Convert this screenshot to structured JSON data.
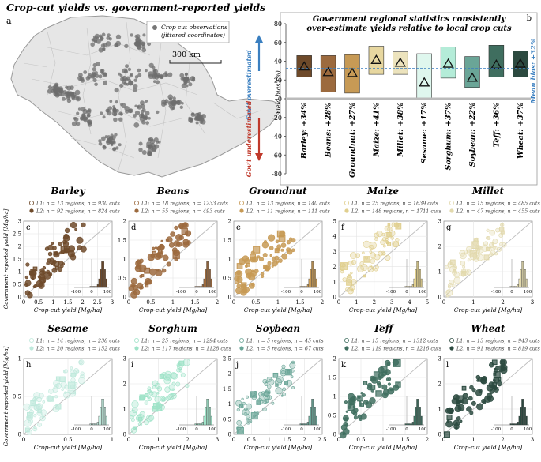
{
  "title": "Crop-cut yields vs. government-reported yields",
  "map": {
    "panel_label": "a",
    "legend_line1": "Crop cut observations",
    "legend_line2": "(jittered coordinates)",
    "scale_label": "300 km"
  },
  "chart_data": [
    {
      "type": "bar",
      "panel": "b",
      "title_line1": "Government regional statistics consistently",
      "title_line2": "over-estimate yields relative to local crop cuts",
      "ylabel": "Yield bias (%)",
      "ylim": [
        -80,
        80
      ],
      "yticks": [
        -80,
        -60,
        -40,
        -20,
        0,
        20,
        40,
        60,
        80
      ],
      "mean_bias_label": "Mean bias: +32%",
      "mean_bias": 32,
      "gov_over_label": "Gov't overestimated",
      "gov_under_label": "Gov't underestimated",
      "categories": [
        "Barley",
        "Beans",
        "Groundnut",
        "Maize",
        "Millet",
        "Sesame",
        "Sorghum",
        "Soybean",
        "Teff",
        "Wheat"
      ],
      "values": [
        34,
        28,
        27,
        41,
        38,
        17,
        37,
        22,
        36,
        37
      ],
      "box_low": [
        23,
        7,
        6,
        26,
        26,
        0,
        22,
        12,
        23,
        23
      ],
      "box_high": [
        46,
        46,
        47,
        56,
        50,
        48,
        55,
        45,
        57,
        51
      ],
      "labels": [
        "Barley: +34%",
        "Beans: +28%",
        "Groundnut: +27%",
        "Maize: +41%",
        "Millet: +38%",
        "Sesame: +17%",
        "Sorghum: +37%",
        "Soybean: +22%",
        "Teff: +36%",
        "Wheat: +37%"
      ],
      "colors": [
        "#6e4a2a",
        "#9c6a3e",
        "#c79a55",
        "#e7d7a0",
        "#ece3bd",
        "#dff7ee",
        "#b4ecd8",
        "#6aa597",
        "#3f6e5f",
        "#2c4a40"
      ]
    }
  ],
  "scatter_panels": [
    {
      "panel": "c",
      "crop": "Barley",
      "l1": "L1: n = 13 regions, n = 930 cuts",
      "l2": "L2: n = 92 regions, n = 824 cuts",
      "color": "#6e4a2a",
      "xmax": 3,
      "ymax": 3,
      "xticks": [
        "0",
        "0.5",
        "1",
        "1.5",
        "2",
        "2.5",
        "3"
      ],
      "yticks": [
        "0",
        "0.5",
        "1",
        "1.5",
        "2",
        "2.5",
        "3"
      ]
    },
    {
      "panel": "d",
      "crop": "Beans",
      "l1": "L1: n = 18 regions, n = 1233 cuts",
      "l2": "L2: n = 55 regions, n = 493 cuts",
      "color": "#9c6a3e",
      "xmax": 2,
      "ymax": 2,
      "xticks": [
        "0",
        "0.5",
        "1",
        "1.5",
        "2"
      ],
      "yticks": [
        "0",
        "0.5",
        "1",
        "1.5",
        "2"
      ]
    },
    {
      "panel": "e",
      "crop": "Groundnut",
      "l1": "L1: n = 13 regions, n = 140 cuts",
      "l2": "L2: n = 11 regions, n = 111 cuts",
      "color": "#c79a55",
      "xmax": 2,
      "ymax": 2,
      "xticks": [
        "0",
        "0.5",
        "1",
        "1.5",
        "2"
      ],
      "yticks": [
        "0",
        "0.5",
        "1",
        "1.5",
        "2"
      ]
    },
    {
      "panel": "f",
      "crop": "Maize",
      "l1": "L1: n = 25 regions, n = 1639 cuts",
      "l2": "L2: n = 148 regions, n = 1711 cuts",
      "color": "#e0cf8e",
      "xmax": 5,
      "ymax": 5,
      "xticks": [
        "0",
        "1",
        "2",
        "3",
        "4",
        "5"
      ],
      "yticks": [
        "0",
        "1",
        "2",
        "3",
        "4",
        "5"
      ]
    },
    {
      "panel": "g",
      "crop": "Millet",
      "l1": "L1: n = 15 regions, n = 485 cuts",
      "l2": "L2: n = 47 regions, n = 455 cuts",
      "color": "#e2d9ad",
      "xmax": 3,
      "ymax": 3,
      "xticks": [
        "0",
        "1",
        "2",
        "3"
      ],
      "yticks": [
        "0",
        "1",
        "2",
        "3"
      ]
    },
    {
      "panel": "h",
      "crop": "Sesame",
      "l1": "L1: n = 14 regions, n = 238 cuts",
      "l2": "L2: n = 20 regions, n = 152 cuts",
      "color": "#bfe9dc",
      "xmax": 1,
      "ymax": 1,
      "xticks": [
        "0",
        "0.5",
        "1"
      ],
      "yticks": [
        "0",
        "0.5",
        "1"
      ]
    },
    {
      "panel": "i",
      "crop": "Sorghum",
      "l1": "L1: n = 25 regions, n = 1294 cuts",
      "l2": "L2: n = 117 regions, n = 1128 cuts",
      "color": "#9fe3c8",
      "xmax": 3,
      "ymax": 3,
      "xticks": [
        "0",
        "1",
        "2",
        "3"
      ],
      "yticks": [
        "0",
        "1",
        "2",
        "3"
      ]
    },
    {
      "panel": "j",
      "crop": "Soybean",
      "l1": "L1: n = 5 regions, n = 45 cuts",
      "l2": "L2: n = 5 regions, n = 67 cuts",
      "color": "#6aa597",
      "xmax": 2.5,
      "ymax": 2.5,
      "xticks": [
        "0",
        "0.5",
        "1",
        "1.5",
        "2",
        "2.5"
      ],
      "yticks": [
        "0",
        "0.5",
        "1",
        "1.5",
        "2",
        "2.5"
      ]
    },
    {
      "panel": "k",
      "crop": "Teff",
      "l1": "L1: n = 15 regions, n = 1312 cuts",
      "l2": "L2: n = 119 regions, n = 1216 cuts",
      "color": "#3f6e5f",
      "xmax": 2,
      "ymax": 2,
      "xticks": [
        "0",
        "0.5",
        "1",
        "1.5",
        "2"
      ],
      "yticks": [
        "0",
        "0.5",
        "1",
        "1.5",
        "2"
      ]
    },
    {
      "panel": "l",
      "crop": "Wheat",
      "l1": "L1: n = 13 regions, n = 943 cuts",
      "l2": "L2: n = 91 regions, n = 819 cuts",
      "color": "#2c4a40",
      "xmax": 3,
      "ymax": 3,
      "xticks": [
        "0",
        "1",
        "2",
        "3"
      ],
      "yticks": [
        "0",
        "1",
        "2",
        "3"
      ]
    }
  ],
  "axis_labels": {
    "x": "Crop-cut yield [Mg/ha]",
    "y": "Government reported yield [Mg/ha]",
    "hist_ticks": [
      "-100",
      "0",
      "100"
    ]
  }
}
